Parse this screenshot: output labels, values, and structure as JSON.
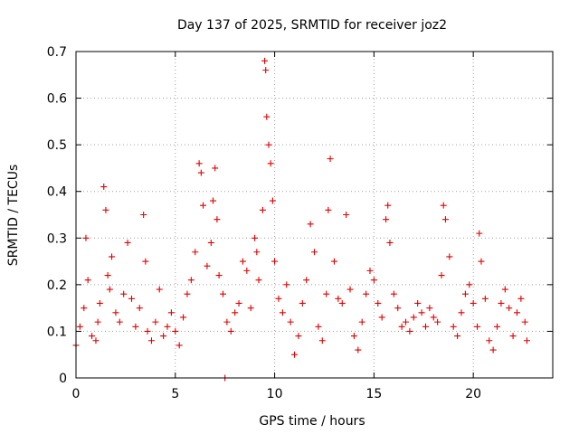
{
  "chart_data": {
    "type": "scatter",
    "title": "Day 137 of 2025, SRMTID for receiver joz2",
    "xlabel": "GPS time / hours",
    "ylabel": "SRMTID / TECUs",
    "xlim": [
      0,
      24
    ],
    "ylim": [
      0,
      0.7
    ],
    "xticks": [
      0,
      5,
      10,
      15,
      20
    ],
    "yticks": [
      0,
      0.1,
      0.2,
      0.3,
      0.4,
      0.5,
      0.6,
      0.7
    ],
    "xtick_labels": [
      "0",
      "5",
      "10",
      "15",
      "20"
    ],
    "ytick_labels": [
      "0",
      "0.1",
      "0.2",
      "0.3",
      "0.4",
      "0.5",
      "0.6",
      "0.7"
    ],
    "grid": true,
    "marker": "+",
    "series_color": "#e00000",
    "series": [
      {
        "name": "SRMTID",
        "x": [
          0.0,
          0.2,
          0.4,
          0.5,
          0.6,
          0.8,
          1.0,
          1.1,
          1.2,
          1.4,
          1.5,
          1.6,
          1.7,
          1.8,
          2.0,
          2.2,
          2.4,
          2.6,
          2.8,
          3.0,
          3.2,
          3.4,
          3.5,
          3.6,
          3.8,
          4.0,
          4.2,
          4.4,
          4.6,
          4.8,
          5.0,
          5.2,
          5.4,
          5.6,
          5.8,
          6.0,
          6.2,
          6.3,
          6.4,
          6.6,
          6.8,
          6.9,
          7.0,
          7.1,
          7.2,
          7.4,
          7.5,
          7.6,
          7.8,
          8.0,
          8.2,
          8.4,
          8.6,
          8.8,
          9.0,
          9.1,
          9.2,
          9.4,
          9.5,
          9.55,
          9.6,
          9.7,
          9.8,
          9.9,
          10.0,
          10.2,
          10.4,
          10.6,
          10.8,
          11.0,
          11.2,
          11.4,
          11.6,
          11.8,
          12.0,
          12.2,
          12.4,
          12.6,
          12.7,
          12.8,
          13.0,
          13.2,
          13.4,
          13.6,
          13.8,
          14.0,
          14.2,
          14.4,
          14.6,
          14.8,
          15.0,
          15.2,
          15.4,
          15.6,
          15.7,
          15.8,
          16.0,
          16.2,
          16.4,
          16.6,
          16.8,
          17.0,
          17.2,
          17.4,
          17.6,
          17.8,
          18.0,
          18.2,
          18.4,
          18.5,
          18.6,
          18.8,
          19.0,
          19.2,
          19.4,
          19.6,
          19.8,
          20.0,
          20.2,
          20.3,
          20.4,
          20.6,
          20.8,
          21.0,
          21.2,
          21.4,
          21.6,
          21.8,
          22.0,
          22.2,
          22.4,
          22.6,
          22.7
        ],
        "y": [
          0.07,
          0.11,
          0.15,
          0.3,
          0.21,
          0.09,
          0.08,
          0.12,
          0.16,
          0.41,
          0.36,
          0.22,
          0.19,
          0.26,
          0.14,
          0.12,
          0.18,
          0.29,
          0.17,
          0.11,
          0.15,
          0.35,
          0.25,
          0.1,
          0.08,
          0.12,
          0.19,
          0.09,
          0.11,
          0.14,
          0.1,
          0.07,
          0.13,
          0.18,
          0.21,
          0.27,
          0.46,
          0.44,
          0.37,
          0.24,
          0.29,
          0.38,
          0.45,
          0.34,
          0.22,
          0.18,
          0.0,
          0.12,
          0.1,
          0.14,
          0.16,
          0.25,
          0.23,
          0.15,
          0.3,
          0.27,
          0.21,
          0.36,
          0.68,
          0.66,
          0.56,
          0.5,
          0.46,
          0.38,
          0.25,
          0.17,
          0.14,
          0.2,
          0.12,
          0.05,
          0.09,
          0.16,
          0.21,
          0.33,
          0.27,
          0.11,
          0.08,
          0.18,
          0.36,
          0.47,
          0.25,
          0.17,
          0.16,
          0.35,
          0.19,
          0.09,
          0.06,
          0.12,
          0.18,
          0.23,
          0.21,
          0.16,
          0.13,
          0.34,
          0.37,
          0.29,
          0.18,
          0.15,
          0.11,
          0.12,
          0.1,
          0.13,
          0.16,
          0.14,
          0.11,
          0.15,
          0.13,
          0.12,
          0.22,
          0.37,
          0.34,
          0.26,
          0.11,
          0.09,
          0.14,
          0.18,
          0.2,
          0.16,
          0.11,
          0.31,
          0.25,
          0.17,
          0.08,
          0.06,
          0.11,
          0.16,
          0.19,
          0.15,
          0.09,
          0.14,
          0.17,
          0.12,
          0.08
        ]
      }
    ]
  }
}
